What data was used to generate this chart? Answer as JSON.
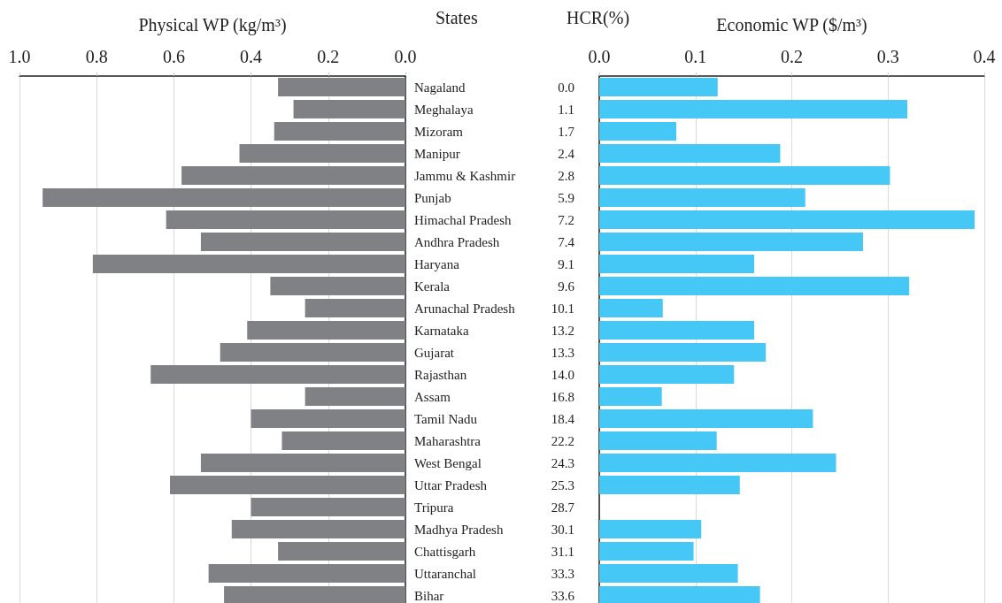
{
  "chart_data": [
    {
      "type": "bar",
      "orientation": "horizontal",
      "xlabel": "Physical WP (kg/m³)",
      "ylabel": "States",
      "grid": "x",
      "color": "#808184",
      "categories": [
        "Nagaland",
        "Meghalaya",
        "Mizoram",
        "Manipur",
        "Jammu & Kashmir",
        "Punjab",
        "Himachal Pradesh",
        "Andhra Pradesh",
        "Haryana",
        "Kerala",
        "Arunachal Pradesh",
        "Karnataka",
        "Gujarat",
        "Rajasthan",
        "Assam",
        "Tamil Nadu",
        "Maharashtra",
        "West Bengal",
        "Uttar Pradesh",
        "Tripura",
        "Madhya Pradesh",
        "Chattisgarh",
        "Uttaranchal",
        "Bihar"
      ],
      "values": [
        0.33,
        0.29,
        0.34,
        0.43,
        0.58,
        0.94,
        0.62,
        0.53,
        0.81,
        0.35,
        0.26,
        0.41,
        0.48,
        0.66,
        0.26,
        0.4,
        0.32,
        0.53,
        0.61,
        0.4,
        0.45,
        0.33,
        0.51,
        0.47
      ],
      "xlim": [
        1,
        0
      ],
      "xticks": [
        {
          "value": 1,
          "label": "1.0"
        },
        {
          "value": 0.8,
          "label": "0.8"
        },
        {
          "value": 0.6,
          "label": "0.6"
        },
        {
          "value": 0.4,
          "label": "0.4"
        },
        {
          "value": 0.2,
          "label": "0.2"
        },
        {
          "value": 0,
          "label": "0.0"
        }
      ]
    },
    {
      "type": "bar",
      "orientation": "horizontal",
      "xlabel": "Economic WP ($/m³)",
      "ylabel": "HCR(%)",
      "grid": "x",
      "color": "#45c8f5",
      "categories": [
        "0.0",
        "1.1",
        "1.7",
        "2.4",
        "2.8",
        "5.9",
        "7.2",
        "7.4",
        "9.1",
        "9.6",
        "10.1",
        "13.2",
        "13.3",
        "14.0",
        "16.8",
        "18.4",
        "22.2",
        "24.3",
        "25.3",
        "28.7",
        "30.1",
        "31.1",
        "33.3",
        "33.6"
      ],
      "values": [
        0.123,
        0.32,
        0.08,
        0.188,
        0.302,
        0.214,
        0.39,
        0.274,
        0.161,
        0.322,
        0.066,
        0.161,
        0.173,
        0.14,
        0.065,
        0.222,
        0.122,
        0.246,
        0.146,
        null,
        0.106,
        0.098,
        0.144,
        0.167
      ],
      "xlim": [
        0,
        0.4
      ],
      "xticks": [
        {
          "value": 0,
          "label": "0.0"
        },
        {
          "value": 0.1,
          "label": "0.1"
        },
        {
          "value": 0.2,
          "label": "0.2"
        },
        {
          "value": 0.3,
          "label": "0.3"
        },
        {
          "value": 0.4,
          "label": "0.4"
        }
      ]
    }
  ]
}
